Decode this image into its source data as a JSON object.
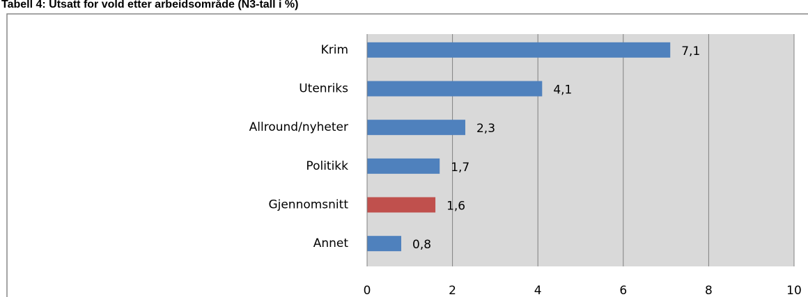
{
  "chart_data": {
    "type": "hbar",
    "title": "Tabell 4: Utsatt for vold etter arbeidsområde (N3-tall i %)",
    "categories": [
      "Krim",
      "Utenriks",
      "Allround/nyheter",
      "Politikk",
      "Gjennomsnitt",
      "Annet"
    ],
    "values": [
      7.1,
      4.1,
      2.3,
      1.7,
      1.6,
      0.8
    ],
    "value_labels": [
      "7,1",
      "4,1",
      "2,3",
      "1,7",
      "1,6",
      "0,8"
    ],
    "colors": [
      "#4f81bd",
      "#4f81bd",
      "#4f81bd",
      "#4f81bd",
      "#c0504d",
      "#4f81bd"
    ],
    "xlim": [
      0,
      10
    ],
    "xticks": [
      0,
      2,
      4,
      6,
      8,
      10
    ],
    "grid": true
  }
}
